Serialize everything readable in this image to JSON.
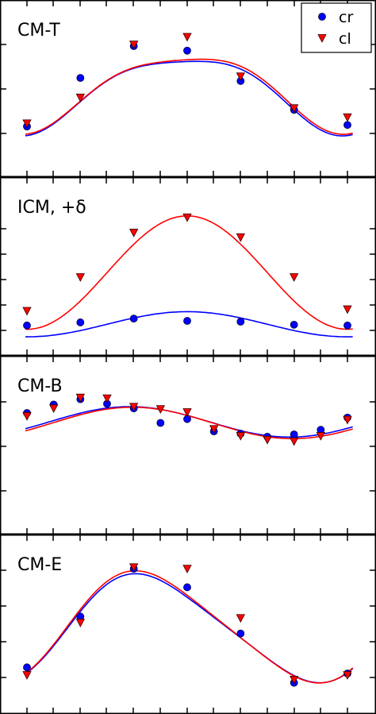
{
  "legend": {
    "entries": [
      {
        "label": "cr",
        "color": "#0000ff",
        "marker": "circle"
      },
      {
        "label": "cl",
        "color": "#ff0000",
        "marker": "triangle-down"
      }
    ]
  },
  "chart_data": [
    {
      "type": "scatter",
      "title": "CM-T",
      "x": [
        0,
        1,
        2,
        3,
        4,
        5,
        6
      ],
      "xlim": [
        -0.03,
        6.1
      ],
      "ylim": [
        0,
        1
      ],
      "grid": false,
      "series": [
        {
          "name": "cr",
          "color": "#0000ff",
          "points": [
            [
              0,
              0.25
            ],
            [
              1,
              0.57
            ],
            [
              2,
              0.78
            ],
            [
              3,
              0.75
            ],
            [
              4,
              0.55
            ],
            [
              5,
              0.36
            ],
            [
              6,
              0.26
            ]
          ],
          "fit": [
            0.484,
            0.244,
            0.017,
            -0.05,
            0.014
          ]
        },
        {
          "name": "cl",
          "color": "#ff0000",
          "points": [
            [
              0,
              0.27
            ],
            [
              1,
              0.44
            ],
            [
              2,
              0.79
            ],
            [
              3,
              0.84
            ],
            [
              4,
              0.58
            ],
            [
              5,
              0.37
            ],
            [
              6,
              0.31
            ]
          ],
          "fit": [
            0.495,
            0.245,
            0.009,
            -0.05,
            0.014
          ]
        }
      ]
    },
    {
      "type": "scatter",
      "title": "ICM, +δ",
      "x": [
        0,
        1,
        2,
        3,
        4,
        5,
        6
      ],
      "xlim": [
        -0.03,
        6.1
      ],
      "ylim": [
        0,
        1
      ],
      "grid": false,
      "series": [
        {
          "name": "cr",
          "color": "#0000ff",
          "points": [
            [
              0,
              0.115
            ],
            [
              1,
              0.135
            ],
            [
              2,
              0.16
            ],
            [
              3,
              0.145
            ],
            [
              4,
              0.14
            ],
            [
              5,
              0.12
            ],
            [
              6,
              0.115
            ]
          ],
          "fit": [
            0.123,
            0.082
          ]
        },
        {
          "name": "cl",
          "color": "#ff0000",
          "points": [
            [
              0,
              0.21
            ],
            [
              1,
              0.43
            ],
            [
              2,
              0.72
            ],
            [
              3,
              0.82
            ],
            [
              4,
              0.69
            ],
            [
              5,
              0.43
            ],
            [
              6,
              0.22
            ]
          ],
          "fit": [
            0.46,
            0.37
          ]
        }
      ]
    },
    {
      "type": "scatter",
      "title": "CM-B",
      "x": [
        0,
        0.5,
        1,
        1.5,
        2,
        2.5,
        3,
        3.5,
        4,
        4.5,
        5,
        5.5,
        6
      ],
      "xlim": [
        -0.03,
        6.1
      ],
      "ylim": [
        0,
        1
      ],
      "grid": false,
      "series": [
        {
          "name": "cr",
          "color": "#0000ff",
          "points": [
            [
              0,
              0.71
            ],
            [
              0.5,
              0.765
            ],
            [
              1,
              0.8
            ],
            [
              1.5,
              0.77
            ],
            [
              2,
              0.74
            ],
            [
              2.5,
              0.645
            ],
            [
              3,
              0.67
            ],
            [
              3.5,
              0.59
            ],
            [
              4,
              0.575
            ],
            [
              4.5,
              0.555
            ],
            [
              5,
              0.57
            ],
            [
              5.5,
              0.6
            ],
            [
              6,
              0.68
            ]
          ],
          "fit": [
            0.652,
            0.042,
            0.09
          ]
        },
        {
          "name": "cl",
          "color": "#ff0000",
          "points": [
            [
              0,
              0.69
            ],
            [
              0.5,
              0.74
            ],
            [
              1,
              0.81
            ],
            [
              1.5,
              0.805
            ],
            [
              2,
              0.75
            ],
            [
              2.5,
              0.735
            ],
            [
              3,
              0.715
            ],
            [
              3.5,
              0.605
            ],
            [
              4,
              0.56
            ],
            [
              4.5,
              0.535
            ],
            [
              5,
              0.525
            ],
            [
              5.5,
              0.56
            ],
            [
              6,
              0.665
            ]
          ],
          "fit": [
            0.645,
            0.049,
            0.09
          ]
        }
      ]
    },
    {
      "type": "scatter",
      "title": "CM-E",
      "x": [
        0,
        1,
        2,
        3,
        4,
        5,
        6
      ],
      "xlim": [
        -0.03,
        6.1
      ],
      "ylim": [
        0,
        1
      ],
      "grid": false,
      "series": [
        {
          "name": "cr",
          "color": "#0000ff",
          "points": [
            [
              0,
              0.22
            ],
            [
              1,
              0.55
            ],
            [
              2,
              0.86
            ],
            [
              3,
              0.74
            ],
            [
              4,
              0.44
            ],
            [
              5,
              0.12
            ],
            [
              6,
              0.18
            ]
          ],
          "fit": [
            0.475,
            0.245,
            0.24,
            -0.045
          ]
        },
        {
          "name": "cl",
          "color": "#ff0000",
          "points": [
            [
              0,
              0.17
            ],
            [
              1,
              0.51
            ],
            [
              2,
              0.87
            ],
            [
              3,
              0.86
            ],
            [
              4,
              0.54
            ],
            [
              5,
              0.14
            ],
            [
              6,
              0.17
            ]
          ],
          "fit": [
            0.483,
            0.25,
            0.25,
            -0.045
          ]
        }
      ]
    }
  ]
}
